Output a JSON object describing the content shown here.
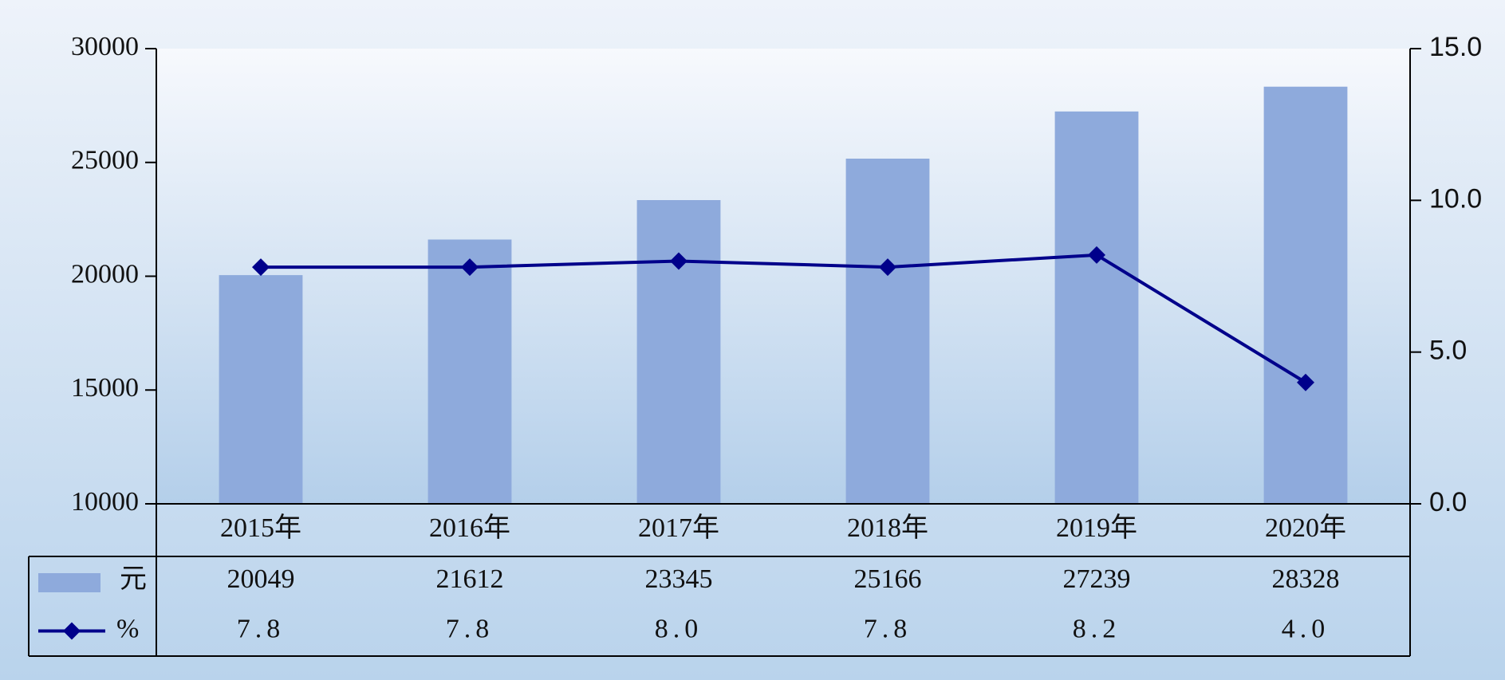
{
  "chart_data": {
    "type": "bar",
    "categories": [
      "2015年",
      "2016年",
      "2017年",
      "2018年",
      "2019年",
      "2020年"
    ],
    "series": [
      {
        "name": "元",
        "color": "#8eaadc",
        "values": [
          20049,
          21612,
          23345,
          25166,
          27239,
          28328
        ]
      },
      {
        "name": "%",
        "color": "#00008b",
        "type": "line",
        "axis": "y2",
        "values": [
          7.8,
          7.8,
          8.0,
          7.8,
          8.2,
          4.0
        ],
        "value_labels": [
          "7.8",
          "7.8",
          "8.0",
          "7.8",
          "8.2",
          "4.0"
        ]
      }
    ],
    "ylim": [
      10000,
      30000
    ],
    "yticks": [
      10000,
      15000,
      20000,
      25000,
      30000
    ],
    "y2lim": [
      0,
      15
    ],
    "y2ticks": [
      {
        "value": 0,
        "label": "0.0"
      },
      {
        "value": 5,
        "label": "5.0"
      },
      {
        "value": 10,
        "label": "10.0"
      },
      {
        "value": 15,
        "label": "15.0"
      }
    ],
    "data_table": true
  }
}
